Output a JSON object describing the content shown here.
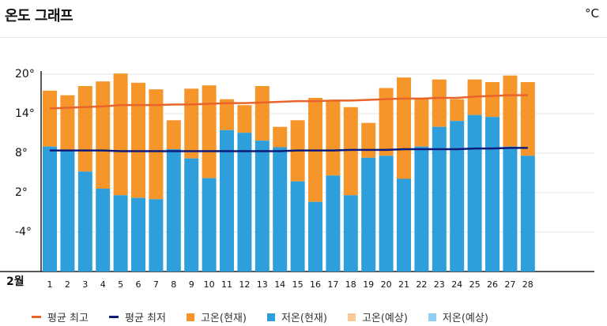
{
  "header": {
    "title": "온도 그래프",
    "unit": "°C"
  },
  "chart_data": {
    "type": "bar",
    "month_label": "2월",
    "categories": [
      "1",
      "2",
      "3",
      "4",
      "5",
      "6",
      "7",
      "8",
      "9",
      "10",
      "11",
      "12",
      "13",
      "14",
      "15",
      "16",
      "17",
      "18",
      "19",
      "20",
      "21",
      "22",
      "23",
      "24",
      "25",
      "26",
      "27",
      "28"
    ],
    "y_ticks": [
      "20°",
      "14°",
      "8°",
      "2°",
      "-4°"
    ],
    "y_tick_values": [
      20,
      14,
      8,
      2,
      -4
    ],
    "ylim": [
      -10,
      20
    ],
    "series": [
      {
        "name": "고온(현재)",
        "color": "#f5952a",
        "values": [
          17.5,
          16.8,
          18.2,
          18.9,
          20.1,
          18.7,
          17.7,
          13.0,
          17.8,
          18.3,
          16.2,
          15.3,
          18.2,
          12.0,
          13.0,
          16.4,
          15.9,
          15.0,
          12.6,
          17.9,
          19.5,
          16.3,
          19.2,
          16.2,
          19.2,
          18.8,
          19.8,
          18.8
        ]
      },
      {
        "name": "저온(현재)",
        "color": "#2f9fdc",
        "values": [
          9.0,
          8.3,
          5.2,
          2.6,
          1.6,
          1.2,
          1.0,
          8.6,
          7.2,
          4.2,
          11.5,
          11.1,
          9.9,
          8.9,
          3.7,
          0.6,
          4.6,
          1.6,
          7.3,
          7.6,
          4.1,
          9.0,
          12.0,
          12.9,
          13.8,
          13.5,
          9.0,
          7.6
        ]
      },
      {
        "name": "평균 최고",
        "color": "#e8642a",
        "type": "line",
        "values": [
          14.8,
          14.9,
          15.0,
          15.1,
          15.3,
          15.3,
          15.3,
          15.4,
          15.4,
          15.5,
          15.6,
          15.6,
          15.7,
          15.8,
          15.9,
          15.9,
          16.0,
          16.0,
          16.1,
          16.2,
          16.3,
          16.3,
          16.4,
          16.4,
          16.6,
          16.7,
          16.8,
          16.8
        ]
      },
      {
        "name": "평균 최저",
        "color": "#0d1b7a",
        "type": "line",
        "values": [
          8.4,
          8.4,
          8.4,
          8.4,
          8.3,
          8.3,
          8.3,
          8.3,
          8.3,
          8.3,
          8.3,
          8.3,
          8.3,
          8.3,
          8.4,
          8.4,
          8.4,
          8.5,
          8.5,
          8.5,
          8.6,
          8.6,
          8.6,
          8.6,
          8.7,
          8.7,
          8.8,
          8.8
        ]
      }
    ],
    "legend_position": "bottom",
    "grid": true
  },
  "legend": [
    {
      "label": "평균 최고",
      "kind": "line",
      "color": "#e8642a"
    },
    {
      "label": "평균 최저",
      "kind": "line",
      "color": "#0d1b7a"
    },
    {
      "label": "고온(현재)",
      "kind": "box",
      "color": "#f5952a"
    },
    {
      "label": "저온(현재)",
      "kind": "box",
      "color": "#2f9fdc"
    },
    {
      "label": "고온(예상)",
      "kind": "box",
      "color": "#f9c99a"
    },
    {
      "label": "저온(예상)",
      "kind": "box",
      "color": "#8dcff0"
    }
  ]
}
